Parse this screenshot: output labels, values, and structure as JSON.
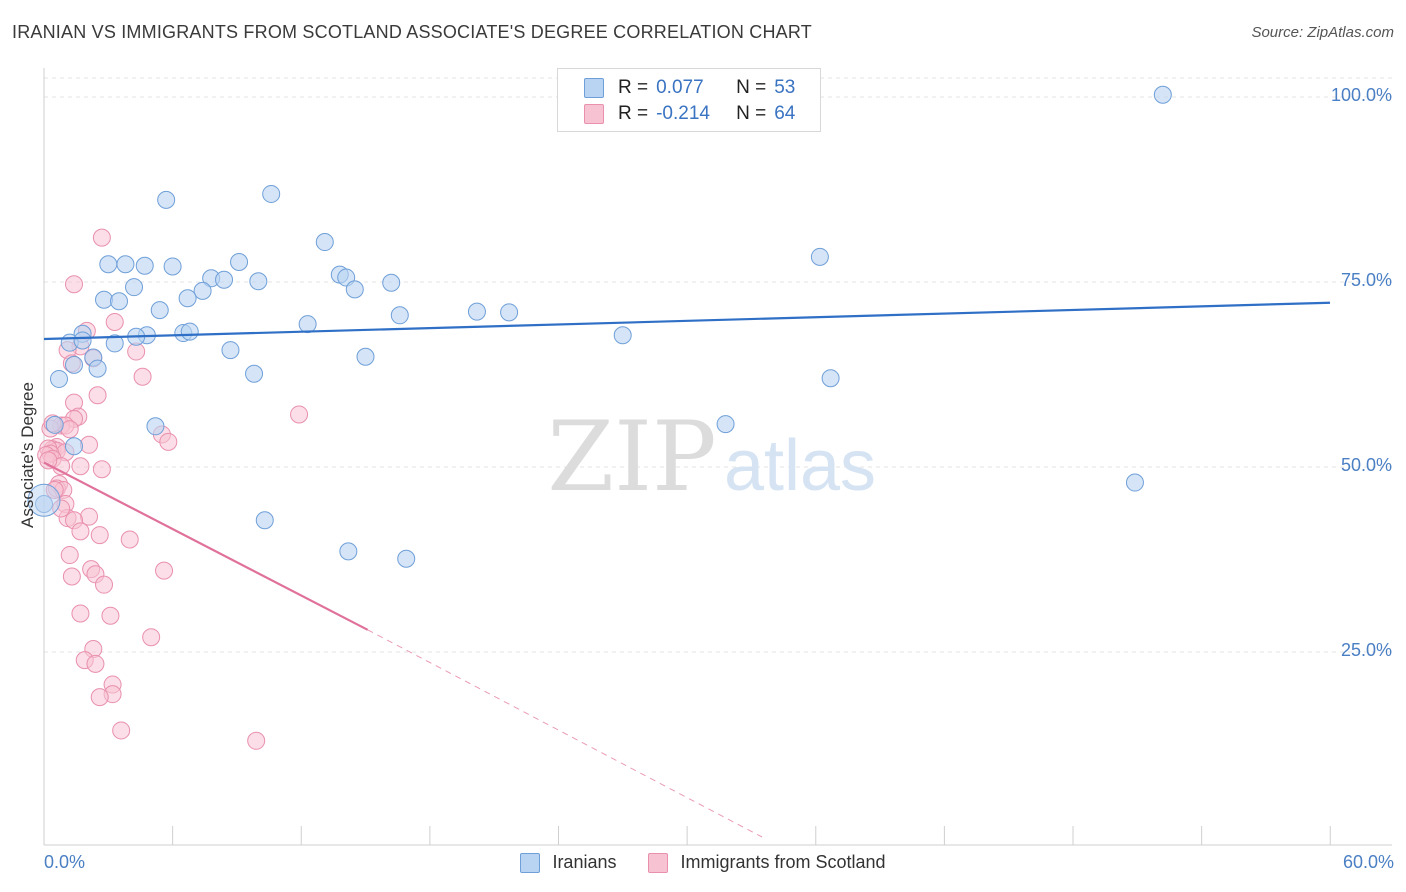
{
  "title": "IRANIAN VS IMMIGRANTS FROM SCOTLAND ASSOCIATE'S DEGREE CORRELATION CHART",
  "source": "Source: ZipAtlas.com",
  "watermark": {
    "zip": "ZIP",
    "atlas": "atlas"
  },
  "legend": {
    "rows": [
      {
        "r_label": "R =",
        "r_value": "0.077",
        "n_label": "N =",
        "n_value": "53"
      },
      {
        "r_label": "R =",
        "r_value": "-0.214",
        "n_label": "N =",
        "n_value": "64"
      }
    ]
  },
  "colors": {
    "blue_fill": "#b9d3f2",
    "blue_stroke": "#6f9fd8",
    "blue_line": "#2f6fc6",
    "pink_fill": "#f7c3d3",
    "pink_stroke": "#e990ad",
    "pink_line": "#e0719a",
    "grid": "#e3e3e3",
    "tick_text": "#4a7fc4"
  },
  "chart_data": {
    "type": "scatter",
    "ylabel": "Associate's Degree",
    "xlim": [
      0,
      60
    ],
    "ylim": [
      0,
      102
    ],
    "x_tick_labels": [
      {
        "value": 0,
        "label": "0.0%"
      },
      {
        "value": 60,
        "label": "60.0%"
      }
    ],
    "y_tick_labels": [
      {
        "value": 100,
        "label": "100.0%"
      },
      {
        "value": 75,
        "label": "75.0%"
      },
      {
        "value": 50,
        "label": "50.0%"
      },
      {
        "value": 25,
        "label": "25.0%"
      }
    ],
    "grid": true,
    "series": [
      {
        "name": "Iranians",
        "r": 0.077,
        "n": 53,
        "trend": {
          "x0": 0,
          "y0": 67.3,
          "x1": 60,
          "y1": 72.2,
          "dashed_after": null
        },
        "points": [
          [
            52.2,
            100.3
          ],
          [
            5.7,
            86.1
          ],
          [
            10.6,
            86.9
          ],
          [
            13.1,
            80.4
          ],
          [
            36.2,
            78.4
          ],
          [
            3.0,
            77.4
          ],
          [
            3.8,
            77.4
          ],
          [
            4.7,
            77.2
          ],
          [
            6.0,
            77.1
          ],
          [
            9.1,
            77.7
          ],
          [
            7.8,
            75.5
          ],
          [
            8.4,
            75.3
          ],
          [
            10.0,
            75.1
          ],
          [
            13.8,
            76.0
          ],
          [
            14.1,
            75.6
          ],
          [
            16.2,
            74.9
          ],
          [
            4.2,
            74.3
          ],
          [
            7.4,
            73.8
          ],
          [
            2.8,
            72.6
          ],
          [
            3.5,
            72.4
          ],
          [
            6.7,
            72.8
          ],
          [
            5.4,
            71.2
          ],
          [
            14.5,
            74.0
          ],
          [
            20.2,
            71.0
          ],
          [
            21.7,
            70.9
          ],
          [
            16.6,
            70.5
          ],
          [
            12.3,
            69.3
          ],
          [
            6.5,
            68.1
          ],
          [
            6.8,
            68.3
          ],
          [
            1.8,
            68.0
          ],
          [
            4.8,
            67.8
          ],
          [
            4.3,
            67.6
          ],
          [
            1.2,
            66.8
          ],
          [
            1.8,
            67.1
          ],
          [
            3.3,
            66.7
          ],
          [
            27.0,
            67.8
          ],
          [
            8.7,
            65.8
          ],
          [
            15.0,
            64.9
          ],
          [
            2.3,
            64.8
          ],
          [
            1.4,
            63.8
          ],
          [
            2.5,
            63.3
          ],
          [
            9.8,
            62.6
          ],
          [
            36.7,
            62.0
          ],
          [
            0.7,
            61.9
          ],
          [
            0.5,
            55.7
          ],
          [
            5.2,
            55.5
          ],
          [
            31.8,
            55.8
          ],
          [
            1.4,
            52.8
          ],
          [
            50.9,
            47.9
          ],
          [
            10.3,
            42.8
          ],
          [
            14.2,
            38.6
          ],
          [
            16.9,
            37.6
          ],
          [
            0.0,
            45.0
          ]
        ]
      },
      {
        "name": "Immigrants from Scotland",
        "r": -0.214,
        "n": 64,
        "trend": {
          "x0": 0,
          "y0": 50.6,
          "x1": 15.1,
          "y1": 28.0,
          "x2": 33.5,
          "y2": 0.0
        },
        "points": [
          [
            2.7,
            81.0
          ],
          [
            1.4,
            74.7
          ],
          [
            3.3,
            69.6
          ],
          [
            2.0,
            68.4
          ],
          [
            1.7,
            66.3
          ],
          [
            1.1,
            65.8
          ],
          [
            4.3,
            65.6
          ],
          [
            2.3,
            64.7
          ],
          [
            1.3,
            64.0
          ],
          [
            4.6,
            62.2
          ],
          [
            2.5,
            59.7
          ],
          [
            1.4,
            58.7
          ],
          [
            11.9,
            57.1
          ],
          [
            1.6,
            56.8
          ],
          [
            1.4,
            56.5
          ],
          [
            0.8,
            55.6
          ],
          [
            1.0,
            55.6
          ],
          [
            0.3,
            55.2
          ],
          [
            1.2,
            55.1
          ],
          [
            5.5,
            54.4
          ],
          [
            5.8,
            53.4
          ],
          [
            2.1,
            53.0
          ],
          [
            0.6,
            52.7
          ],
          [
            0.4,
            52.4
          ],
          [
            0.6,
            52.2
          ],
          [
            0.2,
            52.5
          ],
          [
            1.0,
            52.0
          ],
          [
            0.3,
            51.8
          ],
          [
            0.1,
            51.6
          ],
          [
            0.4,
            51.1
          ],
          [
            0.8,
            50.1
          ],
          [
            1.7,
            50.1
          ],
          [
            2.7,
            49.7
          ],
          [
            0.7,
            47.7
          ],
          [
            0.6,
            47.1
          ],
          [
            0.9,
            46.9
          ],
          [
            1.0,
            45.0
          ],
          [
            2.1,
            43.3
          ],
          [
            1.1,
            43.1
          ],
          [
            1.4,
            42.8
          ],
          [
            1.7,
            41.3
          ],
          [
            2.6,
            40.8
          ],
          [
            4.0,
            40.2
          ],
          [
            1.2,
            38.1
          ],
          [
            2.2,
            36.2
          ],
          [
            5.6,
            36.0
          ],
          [
            2.4,
            35.5
          ],
          [
            1.3,
            35.2
          ],
          [
            2.8,
            34.1
          ],
          [
            1.7,
            30.2
          ],
          [
            3.1,
            29.9
          ],
          [
            5.0,
            27.0
          ],
          [
            2.3,
            25.4
          ],
          [
            1.9,
            23.9
          ],
          [
            2.4,
            23.4
          ],
          [
            3.2,
            20.6
          ],
          [
            3.2,
            19.3
          ],
          [
            2.6,
            18.9
          ],
          [
            3.6,
            14.4
          ],
          [
            9.9,
            13.0
          ],
          [
            0.4,
            55.9
          ],
          [
            0.2,
            50.9
          ],
          [
            0.5,
            46.9
          ],
          [
            0.8,
            44.4
          ]
        ]
      }
    ]
  },
  "bottom_legend": [
    {
      "label": "Iranians"
    },
    {
      "label": "Immigrants from Scotland"
    }
  ]
}
